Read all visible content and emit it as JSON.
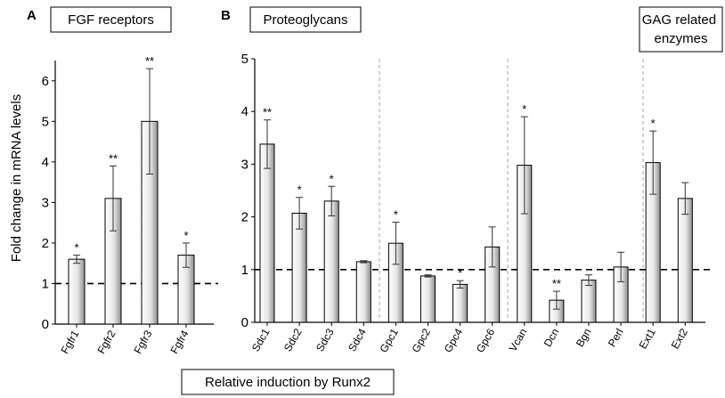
{
  "figure": {
    "ylabel": "Fold change in mRNA levels",
    "caption": "Relative induction by Runx2",
    "reference_level": 1
  },
  "chart_data": [
    {
      "panel": "A",
      "type": "bar",
      "title": "FGF receptors",
      "ylabel": "Fold change in mRNA levels",
      "ylim": [
        0,
        6.5
      ],
      "yticks": [
        0,
        1,
        2,
        3,
        4,
        5,
        6
      ],
      "categories": [
        "Fgfr1",
        "Fgfr2",
        "Fgfr3",
        "Fgfr4"
      ],
      "values": [
        1.6,
        3.1,
        5.0,
        1.7
      ],
      "error": [
        0.1,
        0.8,
        1.3,
        0.3
      ],
      "significance": [
        "*",
        "**",
        "**",
        "*"
      ],
      "reference_line": 1
    },
    {
      "panel": "B",
      "type": "bar",
      "groups": [
        "Proteoglycans",
        "GAG related enzymes"
      ],
      "ylim": [
        0,
        5
      ],
      "yticks": [
        0,
        1,
        2,
        3,
        4,
        5
      ],
      "categories": [
        "Sdc1",
        "Sdc2",
        "Sdc3",
        "Sdc4",
        "Gpc1",
        "Gpc2",
        "Gpc4",
        "Gpc6",
        "Vcan",
        "Dcn",
        "Bgn",
        "Perl",
        "Ext1",
        "Ext2"
      ],
      "values": [
        3.38,
        2.07,
        2.3,
        1.15,
        1.5,
        0.88,
        0.72,
        1.43,
        2.98,
        0.42,
        0.8,
        1.05,
        3.03,
        2.35
      ],
      "error": [
        0.46,
        0.3,
        0.28,
        0.02,
        0.4,
        0.02,
        0.07,
        0.38,
        0.92,
        0.17,
        0.1,
        0.28,
        0.6,
        0.3
      ],
      "significance": [
        "**",
        "*",
        "*",
        "",
        "*",
        "",
        "*",
        "",
        "*",
        "**",
        "",
        "",
        "*",
        ""
      ],
      "reference_line": 1
    }
  ]
}
